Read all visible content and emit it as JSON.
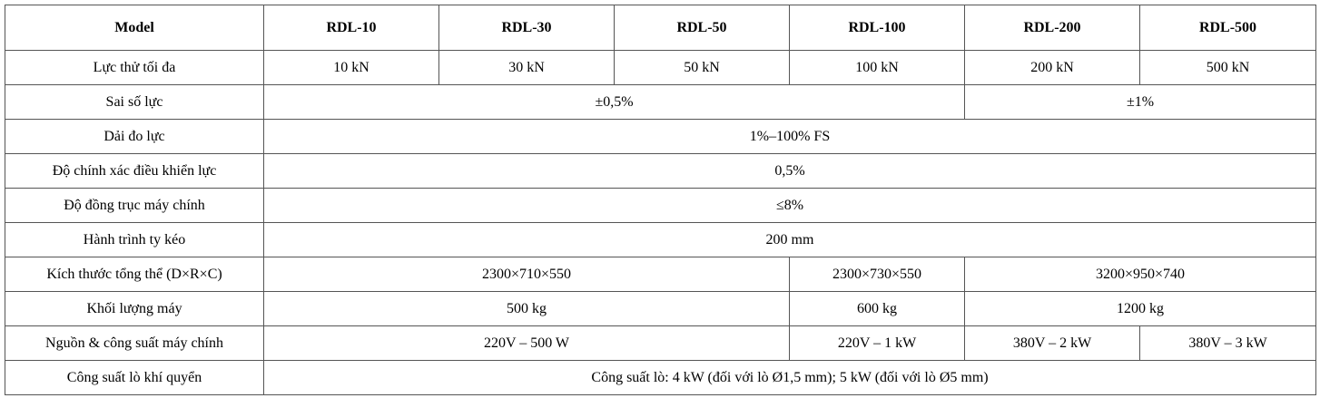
{
  "table": {
    "header": [
      "Model",
      "RDL-10",
      "RDL-30",
      "RDL-50",
      "RDL-100",
      "RDL-200",
      "RDL-500"
    ],
    "rows": [
      [
        "Lực thử tối đa",
        "10 kN",
        "30 kN",
        "50 kN",
        "100 kN",
        "200 kN",
        "500 kN"
      ],
      [
        "Sai số lực",
        "±0,5%",
        "±1%"
      ],
      [
        "Dải đo lực",
        "1%–100% FS"
      ],
      [
        "Độ chính xác điều khiển lực",
        "0,5%"
      ],
      [
        "Độ đồng trục máy chính",
        "≤8%"
      ],
      [
        "Hành trình ty kéo",
        "200 mm"
      ],
      [
        "Kích thước tổng thể (D×R×C)",
        "2300×710×550",
        "2300×730×550",
        "3200×950×740"
      ],
      [
        "Khối lượng máy",
        "500 kg",
        "600 kg",
        "1200 kg"
      ],
      [
        "Nguồn & công suất máy chính",
        "220V – 500 W",
        "220V – 1 kW",
        "380V – 2 kW",
        "380V – 3 kW"
      ],
      [
        "Công suất lò khí quyển",
        "Công suất lò: 4 kW (đối với lò Ø1,5 mm); 5 kW (đối với lò Ø5 mm)"
      ]
    ]
  }
}
